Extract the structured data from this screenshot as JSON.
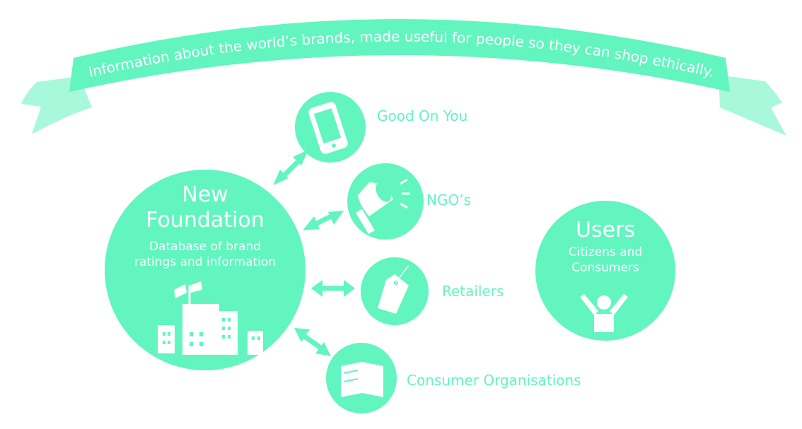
{
  "banner": {
    "text": "Information about the world’s brands, made useful for people so they can shop ethically."
  },
  "foundation": {
    "title": "New Foundation",
    "subtitle": "Database of brand ratings and information",
    "icon": "city-buildings-flag-icon"
  },
  "users": {
    "title": "Users",
    "subtitle": "Citizens and Consumers",
    "icon": "person-arms-raised-icon"
  },
  "partners": [
    {
      "label": "Good On You",
      "icon": "smartphone-icon"
    },
    {
      "label": "NGO’s",
      "icon": "megaphone-icon"
    },
    {
      "label": "Retailers",
      "icon": "price-tag-icon"
    },
    {
      "label": "Consumer Organisations",
      "icon": "flag-banner-icon"
    }
  ],
  "colors": {
    "primary": "#62f5c0",
    "ribbon_tail": "#a8f8dc",
    "text_on_primary": "#ffffff"
  }
}
